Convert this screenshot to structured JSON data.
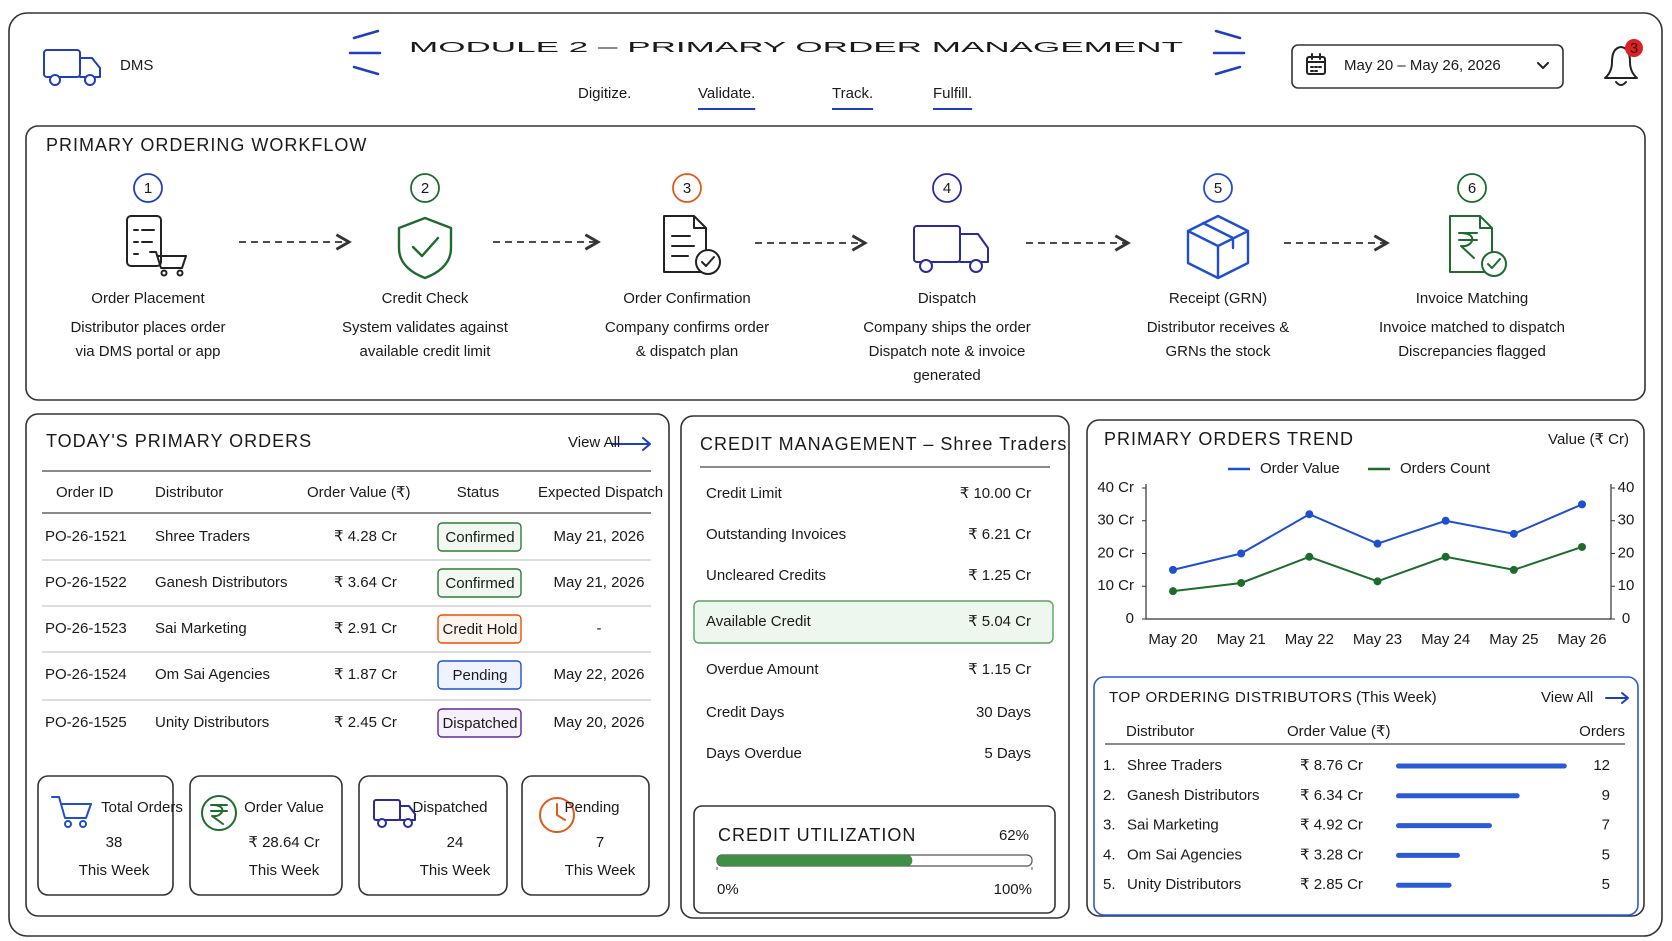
{
  "header": {
    "logo": "DMS",
    "title": "MODULE 2 – PRIMARY ORDER MANAGEMENT",
    "taglines": [
      "Digitize.",
      "Validate.",
      "Track.",
      "Fulfill."
    ],
    "date_range": "May 20 – May 26, 2026",
    "notifications": 3
  },
  "workflow": {
    "title": "PRIMARY ORDERING WORKFLOW",
    "steps": [
      {
        "number": 1,
        "title": "Order Placement",
        "description": [
          "Distributor places order",
          "via DMS portal or app"
        ]
      },
      {
        "number": 2,
        "title": "Credit Check",
        "description": [
          "System validates against",
          "available credit limit"
        ]
      },
      {
        "number": 3,
        "title": "Order Confirmation",
        "description": [
          "Company confirms order",
          "& dispatch plan"
        ]
      },
      {
        "number": 4,
        "title": "Dispatch",
        "description": [
          "Company ships the order",
          "Dispatch note & invoice",
          "generated"
        ]
      },
      {
        "number": 5,
        "title": "Receipt (GRN)",
        "description": [
          "Distributor receives &",
          "GRNs the stock"
        ]
      },
      {
        "number": 6,
        "title": "Invoice Matching",
        "description": [
          "Invoice matched to dispatch",
          "Discrepancies flagged"
        ]
      }
    ]
  },
  "orders": {
    "title": "TODAY'S PRIMARY ORDERS",
    "view_all": "View All",
    "columns": [
      "Order ID",
      "Distributor",
      "Order Value (₹)",
      "Status",
      "Expected Dispatch"
    ],
    "rows": [
      [
        "PO-26-1521",
        "Shree Traders",
        "₹ 4.28 Cr",
        "Confirmed",
        "May 21, 2026"
      ],
      [
        "PO-26-1522",
        "Ganesh Distributors",
        "₹ 3.64 Cr",
        "Confirmed",
        "May 21, 2026"
      ],
      [
        "PO-26-1523",
        "Sai Marketing",
        "₹ 2.91 Cr",
        "Credit Hold",
        "-"
      ],
      [
        "PO-26-1524",
        "Om Sai Agencies",
        "₹ 1.87 Cr",
        "Pending",
        "May 22, 2026"
      ],
      [
        "PO-26-1525",
        "Unity Distributors",
        "₹ 2.45 Cr",
        "Dispatched",
        "May 20, 2026"
      ]
    ]
  },
  "summary_cards": [
    {
      "label": "Total Orders",
      "value": 38,
      "period": "This Week"
    },
    {
      "label": "Order Value",
      "value": "₹ 28.64 Cr",
      "period": "This Week"
    },
    {
      "label": "Dispatched",
      "value": 24,
      "period": "This Week"
    },
    {
      "label": "Pending",
      "value": 7,
      "period": "This Week"
    }
  ],
  "credit": {
    "title": "CREDIT MANAGEMENT – Shree Traders",
    "rows": [
      {
        "label": "Credit Limit",
        "value": "₹ 10.00 Cr"
      },
      {
        "label": "Outstanding Invoices",
        "value": "₹ 6.21 Cr"
      },
      {
        "label": "Uncleared Credits",
        "value": "₹ 1.25 Cr"
      },
      {
        "label": "Available Credit",
        "value": "₹ 5.04 Cr"
      },
      {
        "label": "Overdue Amount",
        "value": "₹ 1.15 Cr"
      },
      {
        "label": "Credit Days",
        "value": "30 Days"
      },
      {
        "label": "Days Overdue",
        "value": "5 Days"
      }
    ]
  },
  "utilization": {
    "title": "CREDIT UTILIZATION",
    "value": 62,
    "value_label": "62%",
    "ticks": [
      {
        "value": 0,
        "label": "0%"
      },
      {
        "value": 100,
        "label": "100%"
      }
    ]
  },
  "chart_data": {
    "type": "line",
    "title": "PRIMARY ORDERS TREND",
    "y_label": "Value (₹ Cr)",
    "categories": [
      "May 20",
      "May 21",
      "May 22",
      "May 23",
      "May 24",
      "May 25",
      "May 26"
    ],
    "series": [
      {
        "name": "Order Value",
        "color": "#1f4fd0",
        "values": [
          15,
          20,
          32,
          23,
          30,
          26,
          35
        ]
      },
      {
        "name": "Orders Count",
        "color": "#1e6b2e",
        "axis": "y2",
        "values": [
          8.5,
          11,
          19,
          11.5,
          19,
          15,
          22
        ]
      }
    ],
    "ylim": [
      0,
      40
    ],
    "yticks": [
      0,
      {
        "value": 10,
        "label": "10 Cr"
      },
      {
        "value": 20,
        "label": "20 Cr"
      },
      {
        "value": 30,
        "label": "30 Cr"
      },
      {
        "value": 40,
        "label": "40 Cr"
      }
    ],
    "y2lim": [
      0,
      40
    ],
    "y2ticks": [
      0,
      10,
      20,
      30,
      40
    ],
    "grid": false
  },
  "top_distributors": {
    "title": "TOP ORDERING DISTRIBUTORS",
    "subtitle": "(This Week)",
    "view_all": "View All",
    "columns": [
      "Distributor",
      "Order Value (₹)",
      "Orders"
    ],
    "rows": [
      {
        "rank": "1.",
        "name": "Shree Traders",
        "value": 8.76,
        "value_label": "₹ 8.76 Cr",
        "orders": 12
      },
      {
        "rank": "2.",
        "name": "Ganesh Distributors",
        "value": 6.34,
        "value_label": "₹ 6.34 Cr",
        "orders": 9
      },
      {
        "rank": "3.",
        "name": "Sai Marketing",
        "value": 4.92,
        "value_label": "₹ 4.92 Cr",
        "orders": 7
      },
      {
        "rank": "4.",
        "name": "Om Sai Agencies",
        "value": 3.28,
        "value_label": "₹ 3.28 Cr",
        "orders": 5
      },
      {
        "rank": "5.",
        "name": "Unity Distributors",
        "value": 2.85,
        "value_label": "₹ 2.85 Cr",
        "orders": 5
      }
    ]
  }
}
